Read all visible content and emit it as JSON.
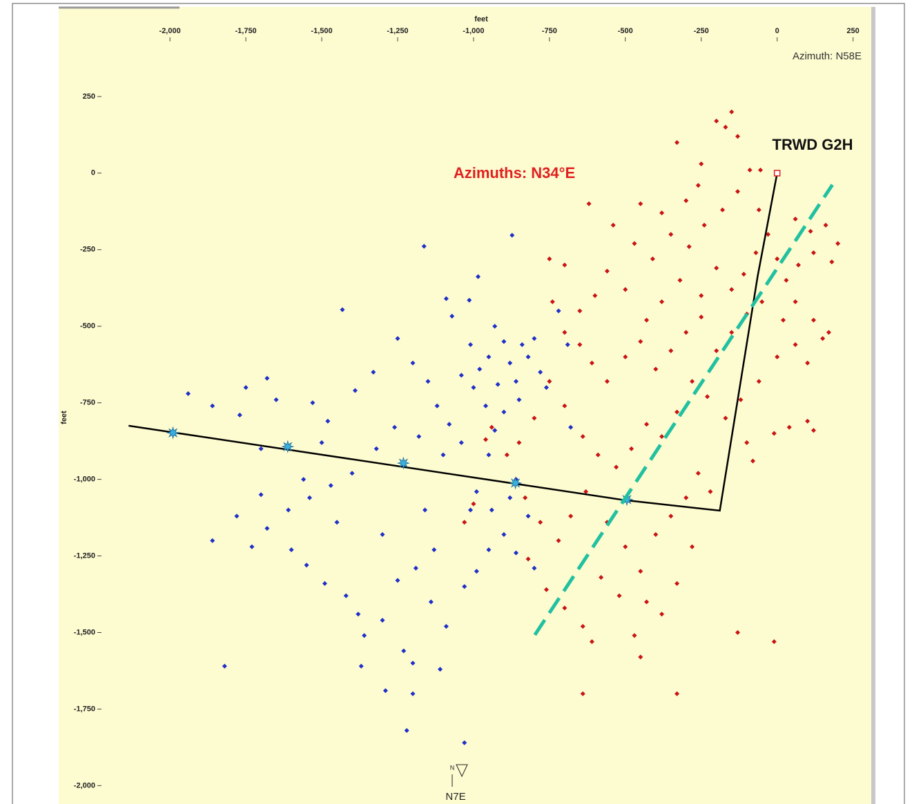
{
  "chart_data": {
    "type": "scatter",
    "xlabel": "feet",
    "ylabel": "feet",
    "view_azimuth": "Azimuth: N58E",
    "fracture_azimuth": "Azimuths: N34°E",
    "well_name": "TRWD G2H",
    "compass": {
      "north": "N",
      "label": "N7E"
    },
    "xlim": [
      -2230,
      310
    ],
    "ylim": [
      -2060,
      430
    ],
    "xticks": [
      {
        "value": -2000,
        "label": "-2,000"
      },
      {
        "value": -1750,
        "label": "-1,750"
      },
      {
        "value": -1500,
        "label": "-1,500"
      },
      {
        "value": -1250,
        "label": "-1,250"
      },
      {
        "value": -1000,
        "label": "-1,000"
      },
      -750,
      -500,
      -250,
      0,
      250
    ],
    "yticks": [
      250,
      0,
      -250,
      -500,
      -750,
      {
        "value": -1000,
        "label": "-1,000"
      },
      {
        "value": -1250,
        "label": "-1,250"
      },
      {
        "value": -1500,
        "label": "-1,500"
      },
      {
        "value": -1750,
        "label": "-1,750"
      },
      {
        "value": -2000,
        "label": "-2,000"
      }
    ],
    "background": "#fdfbd0",
    "series": [
      {
        "type": "scatter",
        "marker": "diamond",
        "color": "#1f2fc8",
        "x": [
          -1163,
          -873,
          -985,
          -1432,
          -1090,
          -1014,
          -1071,
          -1940,
          -1860,
          -1750,
          -1680,
          -1770,
          -1650,
          -1530,
          -1480,
          -1390,
          -1330,
          -1250,
          -1200,
          -1150,
          -1120,
          -1080,
          -1040,
          -1100,
          -1180,
          -1260,
          -1320,
          -1400,
          -1470,
          -1540,
          -1610,
          -1700,
          -1780,
          -1730,
          -1680,
          -1600,
          -1550,
          -1490,
          -1420,
          -1380,
          -1360,
          -1370,
          -1300,
          -1250,
          -1190,
          -1140,
          -1090,
          -1030,
          -990,
          -950,
          -900,
          -860,
          -820,
          -800,
          -1230,
          -1200,
          -1290,
          -1220,
          -1030,
          -1820,
          -1200,
          -1110,
          -930,
          -900,
          -950,
          -880,
          -860,
          -920,
          -980,
          -1000,
          -960,
          -900,
          -850,
          -820,
          -780,
          -760,
          -840,
          -800,
          -1010,
          -1040,
          -930,
          -950,
          -990,
          -1010,
          -940,
          -880,
          -860,
          -720,
          -690,
          -680,
          -1130,
          -1160,
          -1300,
          -1450,
          -1860,
          -1560,
          -1700,
          -1500
        ],
        "y": [
          -239,
          -203,
          -338,
          -446,
          -410,
          -415,
          -467,
          -720,
          -760,
          -700,
          -670,
          -790,
          -740,
          -750,
          -810,
          -710,
          -650,
          -540,
          -620,
          -680,
          -760,
          -820,
          -880,
          -920,
          -860,
          -830,
          -900,
          -980,
          -1020,
          -1060,
          -1100,
          -1050,
          -1120,
          -1220,
          -1160,
          -1230,
          -1280,
          -1340,
          -1380,
          -1440,
          -1510,
          -1610,
          -1460,
          -1330,
          -1290,
          -1400,
          -1480,
          -1350,
          -1300,
          -1230,
          -1180,
          -1240,
          -1120,
          -1290,
          -1560,
          -1700,
          -1690,
          -1820,
          -1860,
          -1610,
          -1600,
          -1620,
          -500,
          -550,
          -600,
          -620,
          -680,
          -690,
          -640,
          -700,
          -760,
          -780,
          -740,
          -600,
          -650,
          -700,
          -560,
          -540,
          -560,
          -660,
          -840,
          -920,
          -1040,
          -1100,
          -1100,
          -1060,
          -1000,
          -450,
          -560,
          -830,
          -1230,
          -1100,
          -1180,
          -1140,
          -1200,
          -1000,
          -900,
          -880
        ]
      },
      {
        "type": "scatter",
        "marker": "diamond",
        "color": "#c81414",
        "x": [
          -200,
          -170,
          -150,
          -130,
          -330,
          -250,
          -90,
          -55,
          -260,
          -300,
          -380,
          -450,
          -620,
          -540,
          -470,
          -410,
          -350,
          -290,
          -240,
          -180,
          -130,
          -60,
          -30,
          60,
          110,
          160,
          200,
          180,
          120,
          70,
          30,
          0,
          -70,
          -110,
          -150,
          -200,
          -250,
          -320,
          -380,
          -430,
          -500,
          -560,
          -600,
          -650,
          -700,
          -750,
          -740,
          -700,
          -650,
          -610,
          -560,
          -500,
          -450,
          -400,
          -350,
          -300,
          -250,
          -200,
          -150,
          -100,
          -50,
          20,
          60,
          100,
          150,
          170,
          120,
          60,
          0,
          -60,
          -120,
          -170,
          -230,
          -280,
          -330,
          -380,
          -430,
          -480,
          -530,
          -590,
          -640,
          -700,
          -750,
          -800,
          -850,
          -890,
          -830,
          -780,
          -720,
          -680,
          -630,
          -560,
          -500,
          -450,
          -400,
          -350,
          -300,
          -260,
          -220,
          -280,
          -330,
          -380,
          -430,
          -520,
          -580,
          -640,
          -700,
          -760,
          -820,
          -610,
          -640,
          -470,
          -450,
          -330,
          -130,
          -10,
          -10,
          40,
          100,
          120,
          -100,
          -80,
          -940,
          -960,
          -1000,
          -1030
        ],
        "y": [
          170,
          150,
          200,
          120,
          100,
          30,
          10,
          10,
          -40,
          -90,
          -130,
          -100,
          -100,
          -170,
          -230,
          -280,
          -200,
          -240,
          -170,
          -120,
          -60,
          -120,
          -200,
          -150,
          -190,
          -170,
          -230,
          -290,
          -260,
          -300,
          -350,
          -280,
          -260,
          -330,
          -380,
          -310,
          -400,
          -350,
          -420,
          -480,
          -380,
          -320,
          -400,
          -450,
          -300,
          -280,
          -420,
          -520,
          -560,
          -620,
          -680,
          -600,
          -550,
          -640,
          -580,
          -520,
          -470,
          -580,
          -520,
          -460,
          -420,
          -480,
          -560,
          -620,
          -540,
          -520,
          -480,
          -420,
          -600,
          -680,
          -740,
          -800,
          -730,
          -680,
          -780,
          -860,
          -820,
          -900,
          -960,
          -920,
          -860,
          -760,
          -680,
          -800,
          -880,
          -920,
          -1060,
          -1140,
          -1200,
          -1120,
          -1040,
          -1140,
          -1220,
          -1300,
          -1180,
          -1120,
          -1060,
          -980,
          -1040,
          -1220,
          -1340,
          -1440,
          -1400,
          -1380,
          -1320,
          -1480,
          -1420,
          -1360,
          -1260,
          -1530,
          -1700,
          -1510,
          -1580,
          -1700,
          -1500,
          -1530,
          -850,
          -830,
          -810,
          -840,
          -880,
          -940,
          -830,
          -870,
          -1080,
          -1140
        ]
      },
      {
        "type": "line",
        "color": "#000000",
        "x": [
          0,
          -64,
          -189,
          -501,
          -2136
        ],
        "y": [
          0,
          -336,
          -1102,
          -1068,
          -825
        ]
      },
      {
        "type": "scatter",
        "marker": "star",
        "color": "#3ab0e0",
        "x": [
          -1990,
          -1612,
          -1231,
          -862,
          -495
        ],
        "y": [
          -848,
          -893,
          -947,
          -1012,
          -1066
        ]
      },
      {
        "type": "line",
        "dash": true,
        "color": "#20c0a0",
        "x": [
          -798,
          182
        ],
        "y": [
          -1508,
          -38
        ]
      },
      {
        "type": "scatter",
        "marker": "square-open",
        "color": "#e02020",
        "x": [
          0
        ],
        "y": [
          0
        ]
      }
    ]
  }
}
